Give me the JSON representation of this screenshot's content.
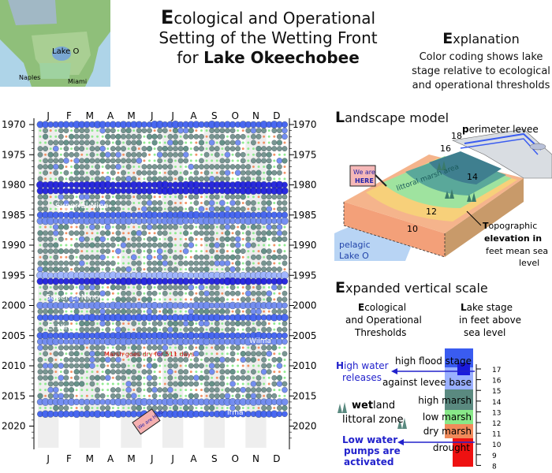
{
  "title": {
    "line1_cap": "E",
    "line1_rest": "cological and Operational",
    "line2": "Setting of the Wetting Front",
    "line3_prefix": "for ",
    "line3_bold": "Lake Okeechobee"
  },
  "map": {
    "labels": [
      "Lake O",
      "Naples",
      "Miami"
    ]
  },
  "explanation": {
    "head_cap": "E",
    "head_rest": "xplanation",
    "text": [
      "Color coding shows lake",
      "stage relative to ecological",
      "and operational thresholds"
    ]
  },
  "chart": {
    "months": [
      "J",
      "F",
      "M",
      "A",
      "M",
      "J",
      "J",
      "A",
      "S",
      "O",
      "N",
      "D"
    ],
    "year_labels": [
      "1970",
      "1975",
      "1980",
      "1985",
      "1990",
      "1995",
      "2000",
      "2005",
      "2010",
      "2015",
      "2020"
    ],
    "annotations": {
      "super_el_nino_1": "Super El Nino",
      "super_el_nino_2": "Super El Nino",
      "el_nino": "El Nino",
      "marsh_dry": "Marsh goes dry for 511 days",
      "wilma": "Wilma",
      "irma": "Irma",
      "we_are_here": "We are HERE"
    }
  },
  "landscape": {
    "head_cap": "L",
    "head_rest": "andscape model",
    "perimeter_cap": "p",
    "perimeter_rest": "erimeter levee",
    "contours": [
      "18",
      "16",
      "14",
      "12",
      "10"
    ],
    "littoral": "littoral marsh area",
    "we_are": "We are",
    "here": "HERE",
    "pelagic": "pelagic",
    "lake_o": "Lake O",
    "topo_cap": "T",
    "topo_rest": "opographic",
    "topo2": "elevation in",
    "topo3": "feet mean sea",
    "topo4": "level"
  },
  "scale": {
    "head_cap": "E",
    "head_rest": "xpanded vertical scale",
    "eco_cap": "E",
    "eco_rest": "cological",
    "eco2": "and Operational",
    "eco3": "Thresholds",
    "lake_cap": "L",
    "lake_rest": "ake stage",
    "lake2": "in feet above",
    "lake3": "sea level",
    "thresholds": [
      "high flood stage",
      "against levee base",
      "high marsh",
      "low marsh",
      "dry marsh",
      "drought"
    ],
    "high_water_cap": "H",
    "high_water_rest": "igh water",
    "high_water2": "releases",
    "wetland_bold": "wet",
    "wetland_rest": "land",
    "littoral_zone": "littoral zone",
    "low_water1": "Low water",
    "low_water2": "pumps are",
    "low_water3": "activated",
    "ticks": [
      "17",
      "16",
      "15",
      "14",
      "13",
      "12",
      "11",
      "10",
      "9",
      "8"
    ]
  },
  "colors": {
    "drought": "#ee1111",
    "dry_marsh": "#f08a5a",
    "low_marsh": "#88e888",
    "high_marsh": "#5a8a80",
    "levee_base": "#9ab0ff",
    "high_flood": "#3a5cf0",
    "extreme": "#1a1adc",
    "arrow": "#2222cc"
  }
}
